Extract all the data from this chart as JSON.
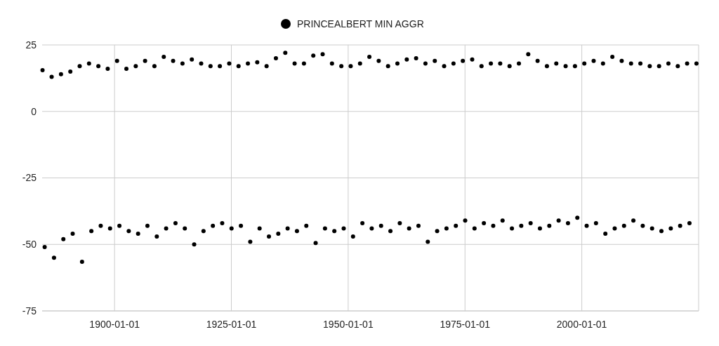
{
  "chart_data": {
    "type": "scatter",
    "legend": "top",
    "grid": true,
    "marker": "circle",
    "xlim": [
      "1884-07-01",
      "2025-01-01"
    ],
    "xticks": [
      "1900-01-01",
      "1925-01-01",
      "1950-01-01",
      "1975-01-01",
      "2000-01-01"
    ],
    "ylim": [
      -75,
      25
    ],
    "yticks": [
      25,
      0,
      -25,
      -50,
      -75
    ],
    "series": [
      {
        "name": "PRINCEALBERT MIN AGGR",
        "color": "#000000",
        "x": [
          "1884-08-01",
          "1885-01-15",
          "1886-07-15",
          "1887-01-15",
          "1888-07-15",
          "1889-01-15",
          "1890-07-15",
          "1891-01-15",
          "1892-07-15",
          "1893-01-15",
          "1894-07-15",
          "1895-01-15",
          "1896-07-15",
          "1897-01-15",
          "1898-07-15",
          "1899-01-15",
          "1900-07-15",
          "1901-01-15",
          "1902-07-15",
          "1903-01-15",
          "1904-07-15",
          "1905-01-15",
          "1906-07-15",
          "1907-01-15",
          "1908-07-15",
          "1909-01-15",
          "1910-07-15",
          "1911-01-15",
          "1912-07-15",
          "1913-01-15",
          "1914-07-15",
          "1915-01-15",
          "1916-07-15",
          "1917-01-15",
          "1918-07-15",
          "1919-01-15",
          "1920-07-15",
          "1921-01-15",
          "1922-07-15",
          "1923-01-15",
          "1924-07-15",
          "1925-01-15",
          "1926-07-15",
          "1927-01-15",
          "1928-07-15",
          "1929-01-15",
          "1930-07-15",
          "1931-01-15",
          "1932-07-15",
          "1933-01-15",
          "1934-07-15",
          "1935-01-15",
          "1936-07-15",
          "1937-01-15",
          "1938-07-15",
          "1939-01-15",
          "1940-07-15",
          "1941-01-15",
          "1942-07-15",
          "1943-01-15",
          "1944-07-15",
          "1945-01-15",
          "1946-07-15",
          "1947-01-15",
          "1948-07-15",
          "1949-01-15",
          "1950-07-15",
          "1951-01-15",
          "1952-07-15",
          "1953-01-15",
          "1954-07-15",
          "1955-01-15",
          "1956-07-15",
          "1957-01-15",
          "1958-07-15",
          "1959-01-15",
          "1960-07-15",
          "1961-01-15",
          "1962-07-15",
          "1963-01-15",
          "1964-07-15",
          "1965-01-15",
          "1966-07-15",
          "1967-01-15",
          "1968-07-15",
          "1969-01-15",
          "1970-07-15",
          "1971-01-15",
          "1972-07-15",
          "1973-01-15",
          "1974-07-15",
          "1975-01-15",
          "1976-07-15",
          "1977-01-15",
          "1978-07-15",
          "1979-01-15",
          "1980-07-15",
          "1981-01-15",
          "1982-07-15",
          "1983-01-15",
          "1984-07-15",
          "1985-01-15",
          "1986-07-15",
          "1987-01-15",
          "1988-07-15",
          "1989-01-15",
          "1990-07-15",
          "1991-01-15",
          "1992-07-15",
          "1993-01-15",
          "1994-07-15",
          "1995-01-15",
          "1996-07-15",
          "1997-01-15",
          "1998-07-15",
          "1999-01-15",
          "2000-07-15",
          "2001-01-15",
          "2002-07-15",
          "2003-01-15",
          "2004-07-15",
          "2005-01-15",
          "2006-07-15",
          "2007-01-15",
          "2008-07-15",
          "2009-01-15",
          "2010-07-15",
          "2011-01-15",
          "2012-07-15",
          "2013-01-15",
          "2014-07-15",
          "2015-01-15",
          "2016-07-15",
          "2017-01-15",
          "2018-07-15",
          "2019-01-15",
          "2020-07-15",
          "2021-01-15",
          "2022-07-15",
          "2023-01-15",
          "2024-07-15"
        ],
        "values": [
          15.5,
          -51,
          13,
          -55,
          14,
          -48,
          15,
          -46,
          17,
          -56.5,
          18,
          -45,
          17,
          -43,
          16,
          -44,
          19,
          -43,
          16,
          -45,
          17,
          -46,
          19,
          -43,
          17,
          -47,
          20.5,
          -44,
          19,
          -42,
          18,
          -44,
          19.5,
          -50,
          18,
          -45,
          17,
          -43,
          17,
          -42,
          18,
          -44,
          17,
          -43,
          18,
          -49,
          18.5,
          -44,
          17,
          -47,
          20,
          -46,
          22,
          -44,
          18,
          -45,
          18,
          -43,
          21,
          -49.5,
          21.5,
          -44,
          18,
          -45,
          17,
          -44,
          17,
          -47,
          18,
          -42,
          20.5,
          -44,
          19,
          -43,
          17,
          -45,
          18,
          -42,
          19.5,
          -44,
          20,
          -43,
          18,
          -49,
          19,
          -45,
          17,
          -44,
          18,
          -43,
          19,
          -41,
          19.5,
          -44,
          17,
          -42,
          18,
          -43,
          18,
          -41,
          17,
          -44,
          18,
          -43,
          21.5,
          -42,
          19,
          -44,
          17,
          -43,
          18,
          -41,
          17,
          -42,
          17,
          -40,
          18,
          -43,
          19,
          -42,
          18,
          -46,
          20.5,
          -44,
          19,
          -43,
          18,
          -41,
          18,
          -43,
          17,
          -44,
          17,
          -45,
          18,
          -44,
          17,
          -43,
          18,
          -42,
          18
        ]
      }
    ]
  }
}
